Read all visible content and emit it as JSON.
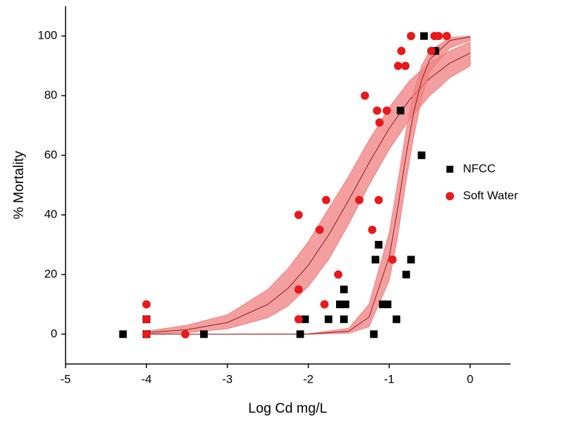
{
  "chart_data": {
    "type": "scatter",
    "xlabel": "Log Cd mg/L",
    "ylabel": "% Mortality",
    "xlim": [
      -5,
      0.5
    ],
    "ylim": [
      -10,
      110
    ],
    "xticks": [
      -5,
      -4,
      -3,
      -2,
      -1,
      0
    ],
    "yticks": [
      0,
      20,
      40,
      60,
      80,
      100
    ],
    "grid": false,
    "legend": "right",
    "series": [
      {
        "name": "NFCC",
        "color": "#000000",
        "marker": "square",
        "x": [
          -4.29,
          -4,
          -4,
          -3.29,
          -2.1,
          -2.04,
          -1.75,
          -1.61,
          -1.56,
          -1.54,
          -1.56,
          -1.19,
          -1.17,
          -1.13,
          -1.08,
          -1.02,
          -0.91,
          -0.79,
          -0.73,
          -0.86,
          -0.6,
          -0.57,
          -0.43
        ],
        "y": [
          0,
          5,
          0,
          0,
          0,
          5,
          5,
          10,
          15,
          10,
          5,
          0,
          25,
          30,
          10,
          10,
          5,
          20,
          25,
          75,
          60,
          100,
          95
        ]
      },
      {
        "name": "Soft Water",
        "color": "#e8191a",
        "marker": "circle",
        "x": [
          -4,
          -4,
          -4,
          -3.52,
          -2.12,
          -2.12,
          -2.12,
          -1.86,
          -1.78,
          -1.8,
          -1.63,
          -1.37,
          -1.3,
          -1.21,
          -1.15,
          -1.13,
          -1.12,
          -1.03,
          -0.96,
          -0.89,
          -0.85,
          -0.8,
          -0.73,
          -0.48,
          -0.44,
          -0.39,
          -0.29
        ],
        "y": [
          10,
          5,
          0,
          0,
          40,
          15,
          5,
          35,
          45,
          10,
          20,
          45,
          80,
          35,
          75,
          45,
          71,
          75,
          25,
          90,
          95,
          90,
          100,
          95,
          100,
          100,
          100
        ]
      }
    ],
    "fits": [
      {
        "color": "#8b1a1a",
        "band_color": "#f07f7f",
        "x": [
          -4,
          -3.5,
          -3,
          -2.5,
          -2.25,
          -2,
          -1.75,
          -1.5,
          -1.25,
          -1,
          -0.75,
          -0.5,
          -0.25,
          0
        ],
        "values": [
          0.5,
          1.5,
          3.9,
          10,
          15.4,
          23.1,
          33.2,
          45,
          57.4,
          69,
          78.6,
          85.8,
          90.9,
          94.3
        ],
        "lower": [
          0.1,
          0.5,
          1.8,
          5.5,
          9.5,
          16,
          25,
          37,
          50,
          62,
          72,
          80,
          86,
          90
        ],
        "upper": [
          1,
          3,
          6.5,
          15,
          22,
          31,
          42,
          53,
          65,
          76,
          85,
          91,
          95,
          98
        ]
      },
      {
        "color": "#8b1a1a",
        "band_color": "#f07f7f",
        "x": [
          -4,
          -3,
          -2,
          -1.5,
          -1.25,
          -1,
          -0.9,
          -0.8,
          -0.7,
          -0.6,
          -0.5,
          -0.25,
          0
        ],
        "values": [
          0,
          0,
          0.03,
          1,
          5.7,
          25.9,
          41.3,
          58.7,
          74.1,
          85.2,
          92.1,
          98.5,
          99.7
        ],
        "lower": [
          0,
          0,
          0,
          0.3,
          2.5,
          18,
          32,
          50,
          66,
          79,
          88,
          96,
          98.5
        ],
        "upper": [
          0,
          0,
          0.1,
          2,
          10,
          34,
          50,
          67,
          81,
          90,
          95,
          99.5,
          100
        ]
      }
    ]
  }
}
